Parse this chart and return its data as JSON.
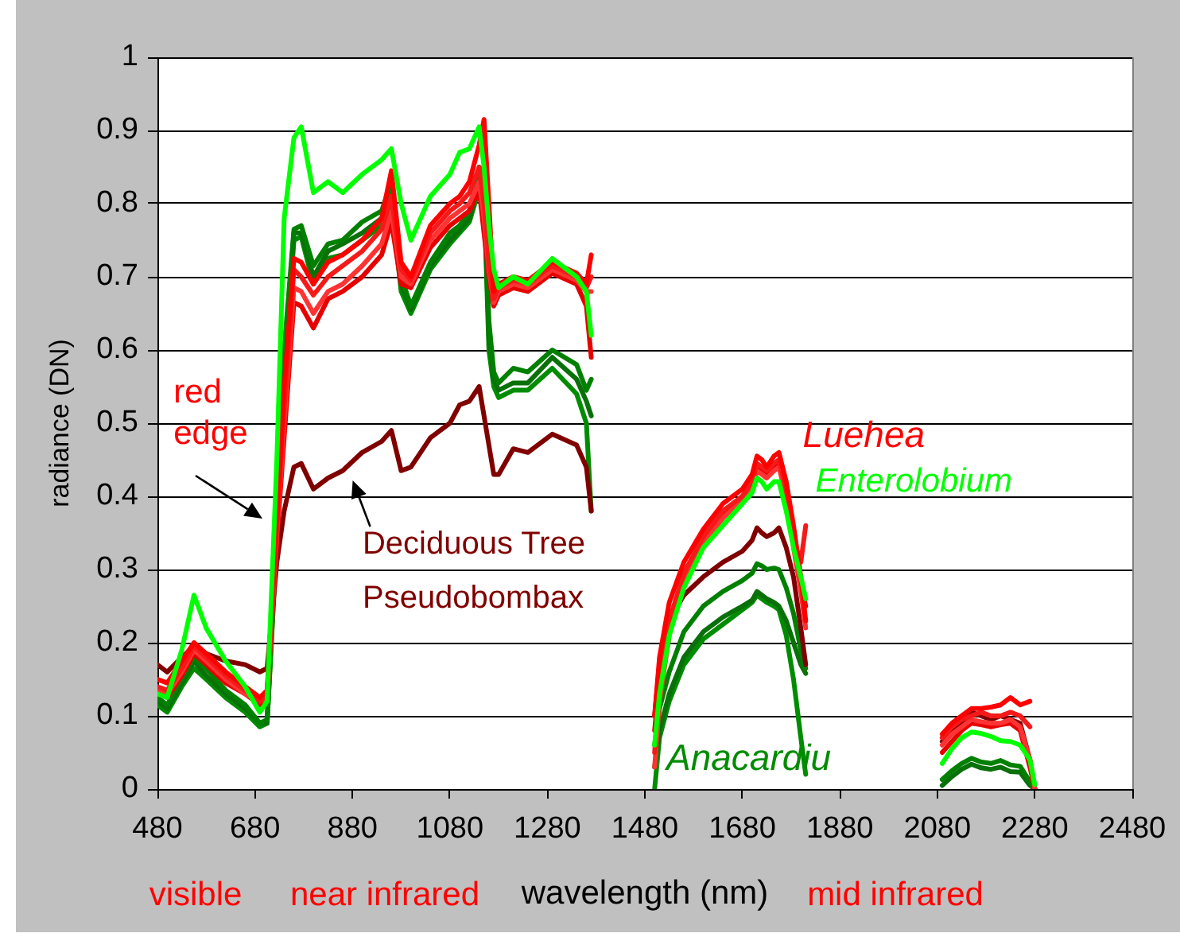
{
  "chart_data": {
    "type": "line",
    "xlabel": "wavelength (nm)",
    "ylabel": "radiance (DN)",
    "annotations": [
      {
        "text": "red edge",
        "x": 725,
        "y": 0.37
      },
      "visible",
      "near infrared",
      "mid infrared"
    ],
    "x": [
      480,
      500,
      530,
      555,
      580,
      620,
      660,
      690,
      705,
      725,
      740,
      760,
      775,
      800,
      830,
      860,
      900,
      940,
      960,
      980,
      1000,
      1040,
      1080,
      1100,
      1120,
      1140,
      1150,
      1160,
      1170,
      1180,
      1210,
      1240,
      1290,
      1340,
      1360,
      1370,
      1430,
      1500,
      1510,
      1530,
      1560,
      1600,
      1640,
      1680,
      1700,
      1710,
      1720,
      1730,
      1745,
      1755,
      1770,
      1785,
      1800,
      1810,
      1950,
      2090,
      2110,
      2130,
      2150,
      2170,
      2190,
      2210,
      2230,
      2250,
      2270,
      2280
    ],
    "series": [
      {
        "name": "Enterolobium",
        "color": "#00ff00",
        "values": [
          0.13,
          0.125,
          0.19,
          0.265,
          0.22,
          0.175,
          0.14,
          0.105,
          0.12,
          0.45,
          0.78,
          0.89,
          0.905,
          0.815,
          0.83,
          0.815,
          0.84,
          0.86,
          0.875,
          0.8,
          0.75,
          0.81,
          0.84,
          0.87,
          0.875,
          0.905,
          0.85,
          0.77,
          0.71,
          0.685,
          0.7,
          0.69,
          0.725,
          0.7,
          0.68,
          0.62,
          null,
          0.06,
          0.13,
          0.21,
          0.275,
          0.33,
          0.36,
          0.39,
          0.405,
          0.425,
          0.42,
          0.41,
          0.42,
          0.42,
          0.38,
          0.33,
          0.29,
          0.26,
          null,
          0.035,
          0.055,
          0.07,
          0.078,
          0.076,
          0.072,
          0.066,
          0.065,
          0.06,
          0.04,
          0.006
        ]
      },
      {
        "name": "Luehea",
        "color": "#ff0000",
        "values": [
          0.15,
          0.145,
          0.175,
          0.2,
          0.185,
          0.16,
          0.14,
          0.125,
          0.135,
          0.37,
          0.55,
          0.725,
          0.72,
          0.69,
          0.72,
          0.73,
          0.75,
          0.78,
          0.845,
          0.72,
          0.7,
          0.77,
          0.8,
          0.81,
          0.83,
          0.88,
          0.915,
          0.8,
          0.68,
          0.69,
          0.7,
          0.695,
          0.72,
          0.705,
          0.69,
          0.73,
          null,
          0.1,
          0.18,
          0.255,
          0.31,
          0.355,
          0.39,
          0.41,
          0.43,
          0.455,
          0.45,
          0.44,
          0.455,
          0.46,
          0.42,
          0.36,
          0.29,
          0.23,
          null,
          0.075,
          0.09,
          0.1,
          0.11,
          0.11,
          0.112,
          0.115,
          0.125,
          0.115,
          0.12,
          null
        ]
      },
      {
        "color": "#f51a1a",
        "values": [
          0.14,
          0.135,
          0.165,
          0.195,
          0.18,
          0.155,
          0.135,
          0.12,
          0.13,
          0.36,
          0.52,
          0.71,
          0.7,
          0.675,
          0.7,
          0.715,
          0.735,
          0.765,
          0.81,
          0.71,
          0.695,
          0.76,
          0.79,
          0.8,
          0.815,
          0.85,
          0.8,
          0.72,
          0.67,
          0.685,
          0.695,
          0.69,
          0.715,
          0.7,
          0.685,
          0.7,
          null,
          0.05,
          0.14,
          0.23,
          0.295,
          0.345,
          0.38,
          0.4,
          0.42,
          0.445,
          0.44,
          0.435,
          0.445,
          0.45,
          0.41,
          0.34,
          0.31,
          0.36,
          null,
          0.07,
          0.085,
          0.095,
          0.1,
          0.105,
          0.1,
          0.1,
          0.105,
          0.1,
          0.085,
          null
        ]
      },
      {
        "color": "#ff3333",
        "values": [
          0.135,
          0.13,
          0.16,
          0.19,
          0.175,
          0.15,
          0.13,
          0.12,
          0.125,
          0.35,
          0.5,
          0.685,
          0.68,
          0.65,
          0.68,
          0.69,
          0.715,
          0.745,
          0.79,
          0.7,
          0.69,
          0.75,
          0.78,
          0.79,
          0.8,
          0.83,
          0.78,
          0.71,
          0.665,
          0.68,
          0.69,
          0.685,
          0.71,
          0.695,
          0.68,
          0.68,
          null,
          0.03,
          0.12,
          0.21,
          0.28,
          0.335,
          0.37,
          0.395,
          0.41,
          0.435,
          0.43,
          0.425,
          0.435,
          0.44,
          0.4,
          0.33,
          0.27,
          0.22,
          null,
          0.06,
          0.075,
          0.085,
          0.095,
          0.092,
          0.09,
          0.09,
          0.095,
          0.085,
          0.04,
          0
        ]
      },
      {
        "color": "#e60000",
        "values": [
          0.13,
          0.125,
          0.155,
          0.185,
          0.17,
          0.145,
          0.13,
          0.115,
          0.125,
          0.34,
          0.48,
          0.665,
          0.66,
          0.63,
          0.67,
          0.68,
          0.7,
          0.73,
          0.775,
          0.69,
          0.685,
          0.74,
          0.77,
          0.78,
          0.79,
          0.82,
          0.76,
          0.7,
          0.66,
          0.675,
          0.685,
          0.68,
          0.705,
          0.69,
          0.66,
          0.59,
          null,
          0.08,
          0.15,
          0.225,
          0.285,
          0.34,
          0.375,
          0.4,
          0.415,
          0.44,
          0.435,
          0.43,
          0.44,
          0.445,
          0.405,
          0.35,
          0.28,
          0.25,
          null,
          0.05,
          0.065,
          0.08,
          0.09,
          0.088,
          0.085,
          0.088,
          0.09,
          0.08,
          0.03,
          0
        ]
      },
      {
        "name": "Deciduous Tree Pseudobombax",
        "color": "#800000",
        "values": [
          0.17,
          0.16,
          0.18,
          0.195,
          0.185,
          0.175,
          0.17,
          0.16,
          0.165,
          0.31,
          0.38,
          0.44,
          0.445,
          0.41,
          0.425,
          0.435,
          0.46,
          0.475,
          0.49,
          0.435,
          0.44,
          0.48,
          0.5,
          0.525,
          0.53,
          0.55,
          0.51,
          0.47,
          0.43,
          0.43,
          0.465,
          0.46,
          0.485,
          0.47,
          0.44,
          0.38,
          null,
          0.1,
          0.17,
          0.23,
          0.265,
          0.29,
          0.31,
          0.325,
          0.34,
          0.357,
          0.35,
          0.345,
          0.35,
          0.357,
          0.33,
          0.29,
          0.22,
          0.17,
          null,
          0.065,
          0.08,
          0.09,
          0.105,
          0.1,
          0.095,
          0.1,
          0.095,
          0.09,
          0.04,
          0
        ]
      },
      {
        "color": "#008000",
        "values": [
          0.125,
          0.115,
          0.15,
          0.18,
          0.165,
          0.135,
          0.115,
          0.09,
          0.095,
          0.36,
          0.6,
          0.765,
          0.77,
          0.715,
          0.745,
          0.75,
          0.775,
          0.79,
          0.83,
          0.7,
          0.66,
          0.72,
          0.76,
          0.77,
          0.79,
          0.85,
          0.84,
          0.64,
          0.57,
          0.555,
          0.575,
          0.57,
          0.6,
          0.58,
          0.545,
          0.56,
          null,
          0.06,
          0.11,
          0.16,
          0.215,
          0.25,
          0.27,
          0.285,
          0.295,
          0.308,
          0.305,
          0.3,
          0.302,
          0.3,
          0.275,
          0.24,
          0.19,
          0.165,
          null,
          0.013,
          0.025,
          0.035,
          0.042,
          0.037,
          0.035,
          0.039,
          0.033,
          0.031,
          0.01,
          0
        ]
      },
      {
        "color": "#0a700a",
        "values": [
          0.12,
          0.11,
          0.145,
          0.175,
          0.155,
          0.13,
          0.11,
          0.09,
          0.09,
          0.35,
          0.58,
          0.76,
          0.76,
          0.7,
          0.735,
          0.745,
          0.76,
          0.78,
          0.815,
          0.69,
          0.655,
          0.715,
          0.75,
          0.765,
          0.78,
          0.83,
          0.82,
          0.62,
          0.56,
          0.545,
          0.555,
          0.555,
          0.59,
          0.56,
          0.53,
          0.51,
          null,
          0.03,
          0.08,
          0.13,
          0.18,
          0.215,
          0.235,
          0.25,
          0.258,
          0.27,
          0.265,
          0.26,
          0.255,
          0.25,
          0.23,
          0.2,
          0.17,
          0.158,
          null,
          0.005,
          0.017,
          0.027,
          0.034,
          0.029,
          0.027,
          0.03,
          0.024,
          0.023,
          0.005,
          0
        ]
      },
      {
        "name": "Anacardiu",
        "color": "#008c00",
        "values": [
          0.115,
          0.105,
          0.14,
          0.165,
          0.15,
          0.125,
          0.105,
          0.085,
          0.09,
          0.34,
          0.56,
          0.75,
          0.755,
          0.69,
          0.725,
          0.73,
          0.75,
          0.77,
          0.8,
          0.68,
          0.65,
          0.71,
          0.745,
          0.76,
          0.775,
          0.82,
          0.81,
          0.6,
          0.55,
          0.535,
          0.545,
          0.545,
          0.575,
          0.54,
          0.5,
          0.38,
          null,
          0,
          0.07,
          0.12,
          0.17,
          0.205,
          0.225,
          0.245,
          0.255,
          0.265,
          0.26,
          0.255,
          0.25,
          0.245,
          0.21,
          0.15,
          0.07,
          0.02,
          null,
          null,
          null,
          null,
          null,
          null,
          null,
          null,
          null,
          null,
          null,
          null
        ]
      }
    ],
    "xlim": [
      480,
      2480
    ],
    "xticks": [
      480,
      680,
      880,
      1080,
      1280,
      1480,
      1680,
      1880,
      2080,
      2280,
      2480
    ],
    "ylim": [
      0,
      1
    ],
    "yticks": [
      0,
      0.1,
      0.2,
      0.3,
      0.4,
      0.5,
      0.6,
      0.7,
      0.8,
      0.9,
      1
    ],
    "grid": "y"
  }
}
